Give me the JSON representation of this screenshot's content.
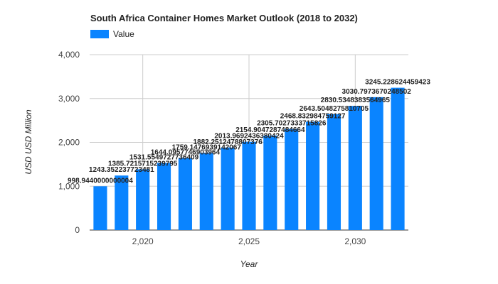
{
  "chart_data": {
    "type": "bar",
    "title": "South Africa Container Homes Market Outlook (2018 to 2032)",
    "xlabel": "Year",
    "ylabel": "USD USD Million",
    "legend": {
      "position": "top-left",
      "entries": [
        "Value"
      ]
    },
    "grid": true,
    "ylim": [
      0,
      4000
    ],
    "yticks": [
      0,
      1000,
      2000,
      3000,
      4000
    ],
    "ytick_labels": [
      "0",
      "1,000",
      "2,000",
      "3,000",
      "4,000"
    ],
    "xlim": [
      2017.5,
      2032.5
    ],
    "xticks": [
      2020,
      2025,
      2030
    ],
    "xtick_labels": [
      "2,020",
      "2,025",
      "2,030"
    ],
    "series": [
      {
        "name": "Value",
        "color": "#0a84ff",
        "x": [
          2018,
          2019,
          2020,
          2021,
          2022,
          2023,
          2024,
          2025,
          2026,
          2027,
          2028,
          2029,
          2030,
          2031,
          2032
        ],
        "values": [
          998.9440000000004,
          1243.352237723481,
          1385.7215715239795,
          1531.5549727736409,
          1644.0957746903964,
          1759.1476939142067,
          1882.2512478807375,
          2013.9692436380424,
          2154.9047287484664,
          2305.702733371583,
          2468.832984759127,
          2643.5048275810705,
          2830.5348383564965,
          3030.7973670248502,
          3245.228624459423
        ],
        "labels": [
          "998.9440000000004",
          "1243.352237723481",
          "1385.7215715239795",
          "1531.5549727736409",
          "1644.0957746903964",
          "1759.1476939142067",
          "1882.2512478807376",
          "2013.9692436380424",
          "2154.9047287484664",
          "2305.7027333715826",
          "2468.832984759127",
          "2643.5048275810705",
          "2830.5348383564965",
          "3030.7973670248502",
          "3245.228624459423"
        ]
      }
    ]
  }
}
